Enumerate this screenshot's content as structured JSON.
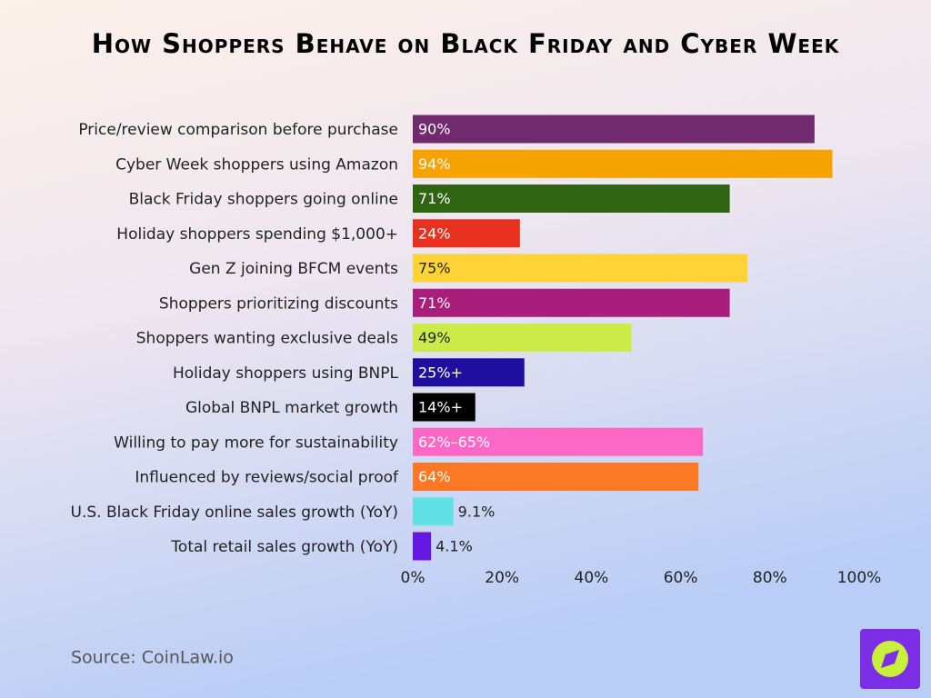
{
  "chart_data": {
    "type": "hbar",
    "title": "How Shoppers Behave on Black Friday and Cyber Week",
    "source": "Source: CoinLaw.io",
    "categories": [
      "Price/review comparison before purchase",
      "Cyber Week shoppers using Amazon",
      "Black Friday shoppers going online",
      "Holiday shoppers spending $1,000+",
      "Gen Z joining BFCM events",
      "Shoppers prioritizing discounts",
      "Shoppers wanting exclusive deals",
      "Holiday shoppers using BNPL",
      "Global BNPL market growth",
      "Willing to pay more for sustainability",
      "Influenced by reviews/social proof",
      "U.S. Black Friday online sales growth (YoY)",
      "Total retail sales growth (YoY)"
    ],
    "values": [
      90,
      94,
      71,
      24,
      75,
      71,
      49,
      25,
      14,
      65,
      64,
      9.1,
      4.1
    ],
    "value_labels": [
      "90%",
      "94%",
      "71%",
      "24%",
      "75%",
      "71%",
      "49%",
      "25%+",
      "14%+",
      "62%–65%",
      "64%",
      "9.1%",
      "4.1%"
    ],
    "colors": [
      "#722a6f",
      "#f6a200",
      "#2f6413",
      "#e8311f",
      "#fdd338",
      "#a81e7a",
      "#cceb49",
      "#1e0f9e",
      "#000000",
      "#fc68c6",
      "#fb7824",
      "#60e1e3",
      "#6418e0"
    ],
    "xlim": [
      0,
      100
    ],
    "xticks": [
      {
        "value": 0,
        "label": "0%"
      },
      {
        "value": 20,
        "label": "20%"
      },
      {
        "value": 40,
        "label": "40%"
      },
      {
        "value": 60,
        "label": "60%"
      },
      {
        "value": 80,
        "label": "80%"
      },
      {
        "value": 100,
        "label": "100%"
      }
    ]
  }
}
